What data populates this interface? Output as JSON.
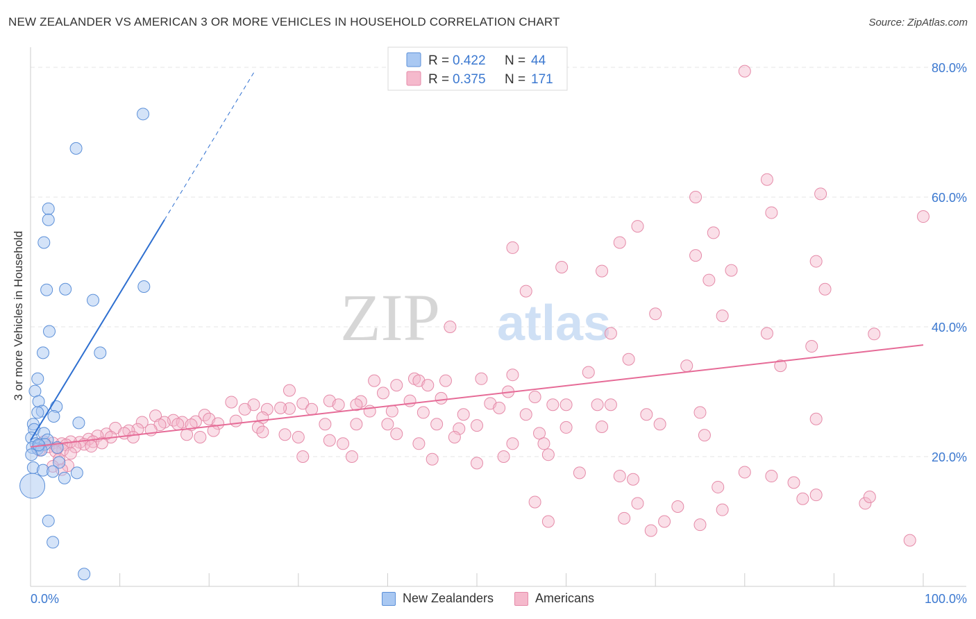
{
  "title": "NEW ZEALANDER VS AMERICAN 3 OR MORE VEHICLES IN HOUSEHOLD CORRELATION CHART",
  "source": "Source: ZipAtlas.com",
  "watermark": {
    "part1": "ZIP",
    "part2": "atlas"
  },
  "colors": {
    "blue_fill": "#a9c8f2",
    "blue_stroke": "#5b8fd8",
    "blue_line": "#2e6fd0",
    "pink_fill": "#f5b9cc",
    "pink_stroke": "#e58aa8",
    "pink_line": "#e66b97",
    "axis_text": "#3b78d0"
  },
  "legend_box": {
    "rows": [
      {
        "r_label": "R =",
        "r_value": "0.422",
        "n_label": "N =",
        "n_value": "44"
      },
      {
        "r_label": "R =",
        "r_value": "0.375",
        "n_label": "N =",
        "n_value": "171"
      }
    ]
  },
  "legend_bottom": [
    "New Zealanders",
    "Americans"
  ],
  "chart_data": {
    "type": "scatter",
    "title": "NEW ZEALANDER VS AMERICAN 3 OR MORE VEHICLES IN HOUSEHOLD CORRELATION CHART",
    "xlabel": "",
    "ylabel": "3 or more Vehicles in Household",
    "xlim": [
      0,
      100
    ],
    "ylim": [
      0,
      80
    ],
    "x_tick_labels": [
      "0.0%",
      "100.0%"
    ],
    "y_tick_labels": [
      "20.0%",
      "40.0%",
      "60.0%",
      "80.0%"
    ],
    "y_ticks": [
      20,
      40,
      60,
      80
    ],
    "grid": true,
    "legend_position": "top-center",
    "series": [
      {
        "name": "New Zealanders",
        "r": 0.422,
        "n": 44,
        "trend": {
          "x0": 0,
          "y0": 22.5,
          "x1": 15,
          "y1": 56.5,
          "x_dash_end": 25
        },
        "points": [
          [
            12.6,
            72.8
          ],
          [
            5.1,
            67.5
          ],
          [
            2.0,
            58.2
          ],
          [
            2.0,
            56.5
          ],
          [
            1.5,
            53.0
          ],
          [
            1.8,
            45.7
          ],
          [
            3.9,
            45.8
          ],
          [
            12.7,
            46.2
          ],
          [
            7.0,
            44.1
          ],
          [
            2.1,
            39.3
          ],
          [
            1.4,
            36.0
          ],
          [
            7.8,
            36.0
          ],
          [
            0.8,
            32.0
          ],
          [
            0.5,
            30.1
          ],
          [
            0.9,
            28.5
          ],
          [
            2.9,
            27.7
          ],
          [
            1.3,
            27.0
          ],
          [
            0.8,
            26.8
          ],
          [
            2.6,
            26.2
          ],
          [
            5.4,
            25.2
          ],
          [
            0.3,
            25.0
          ],
          [
            0.4,
            24.2
          ],
          [
            1.5,
            23.6
          ],
          [
            1.9,
            22.6
          ],
          [
            0.1,
            22.9
          ],
          [
            0.6,
            22.0
          ],
          [
            1.0,
            21.7
          ],
          [
            1.6,
            21.9
          ],
          [
            0.2,
            21.4
          ],
          [
            0.8,
            21.2
          ],
          [
            3.0,
            21.4
          ],
          [
            1.2,
            21.0
          ],
          [
            0.1,
            20.3
          ],
          [
            3.2,
            19.1
          ],
          [
            0.3,
            18.3
          ],
          [
            1.4,
            17.9
          ],
          [
            2.5,
            17.7
          ],
          [
            5.2,
            17.5
          ],
          [
            3.8,
            16.7
          ],
          [
            0.2,
            15.5
          ],
          [
            2.0,
            10.1
          ],
          [
            2.5,
            6.8
          ],
          [
            6.0,
            1.9
          ],
          [
            0.9,
            21.8
          ]
        ]
      },
      {
        "name": "Americans",
        "r": 0.375,
        "n": 171,
        "trend": {
          "x0": 0,
          "y0": 21.5,
          "x1": 100,
          "y1": 37.2
        },
        "points": [
          [
            80.0,
            79.4
          ],
          [
            82.5,
            62.7
          ],
          [
            74.5,
            60.0
          ],
          [
            83.0,
            57.6
          ],
          [
            88.5,
            60.5
          ],
          [
            100.0,
            57.0
          ],
          [
            68.0,
            55.5
          ],
          [
            76.5,
            54.5
          ],
          [
            66.0,
            53.0
          ],
          [
            54.0,
            52.2
          ],
          [
            74.5,
            51.0
          ],
          [
            88.0,
            50.1
          ],
          [
            59.5,
            49.2
          ],
          [
            64.0,
            48.6
          ],
          [
            78.5,
            48.7
          ],
          [
            76.0,
            47.2
          ],
          [
            89.0,
            45.8
          ],
          [
            55.5,
            45.5
          ],
          [
            70.0,
            42.0
          ],
          [
            77.5,
            41.7
          ],
          [
            47.0,
            40.0
          ],
          [
            65.0,
            39.0
          ],
          [
            82.5,
            39.0
          ],
          [
            94.5,
            38.9
          ],
          [
            87.5,
            37.0
          ],
          [
            84.0,
            34.0
          ],
          [
            67.0,
            35.0
          ],
          [
            73.5,
            34.0
          ],
          [
            62.5,
            33.0
          ],
          [
            54.0,
            32.6
          ],
          [
            50.5,
            32.0
          ],
          [
            43.0,
            32.0
          ],
          [
            43.5,
            31.7
          ],
          [
            46.5,
            31.7
          ],
          [
            38.5,
            31.7
          ],
          [
            44.5,
            31.0
          ],
          [
            41.0,
            31.0
          ],
          [
            29.0,
            30.2
          ],
          [
            53.5,
            30.0
          ],
          [
            39.5,
            29.8
          ],
          [
            56.5,
            29.2
          ],
          [
            46.0,
            29.0
          ],
          [
            33.5,
            28.6
          ],
          [
            37.0,
            28.5
          ],
          [
            42.5,
            28.6
          ],
          [
            30.5,
            28.2
          ],
          [
            22.5,
            28.4
          ],
          [
            34.5,
            28.0
          ],
          [
            36.5,
            28.0
          ],
          [
            51.5,
            28.2
          ],
          [
            58.5,
            28.0
          ],
          [
            60.0,
            28.0
          ],
          [
            63.5,
            28.0
          ],
          [
            65.0,
            28.0
          ],
          [
            52.5,
            27.5
          ],
          [
            29.0,
            27.4
          ],
          [
            25.0,
            28.0
          ],
          [
            28.0,
            27.5
          ],
          [
            24.0,
            27.3
          ],
          [
            26.5,
            27.3
          ],
          [
            31.5,
            27.3
          ],
          [
            38.0,
            27.0
          ],
          [
            40.5,
            27.0
          ],
          [
            44.0,
            26.8
          ],
          [
            48.5,
            26.5
          ],
          [
            55.5,
            26.5
          ],
          [
            69.0,
            26.5
          ],
          [
            75.0,
            26.8
          ],
          [
            88.0,
            25.8
          ],
          [
            19.5,
            26.4
          ],
          [
            26.0,
            26.0
          ],
          [
            14.0,
            26.3
          ],
          [
            16.0,
            25.6
          ],
          [
            20.0,
            25.8
          ],
          [
            23.0,
            25.5
          ],
          [
            17.0,
            25.3
          ],
          [
            18.5,
            25.4
          ],
          [
            21.0,
            25.1
          ],
          [
            15.0,
            25.3
          ],
          [
            12.5,
            25.3
          ],
          [
            14.5,
            24.9
          ],
          [
            16.5,
            25.0
          ],
          [
            18.0,
            24.9
          ],
          [
            33.0,
            25.0
          ],
          [
            36.5,
            25.0
          ],
          [
            40.0,
            25.0
          ],
          [
            45.5,
            25.0
          ],
          [
            50.0,
            24.8
          ],
          [
            64.0,
            24.6
          ],
          [
            70.5,
            25.0
          ],
          [
            60.0,
            24.5
          ],
          [
            48.0,
            24.3
          ],
          [
            25.5,
            24.5
          ],
          [
            20.5,
            24.0
          ],
          [
            12.0,
            24.2
          ],
          [
            11.0,
            24.0
          ],
          [
            9.5,
            24.4
          ],
          [
            13.5,
            24.1
          ],
          [
            10.5,
            23.6
          ],
          [
            8.5,
            23.5
          ],
          [
            11.5,
            23.0
          ],
          [
            7.5,
            23.2
          ],
          [
            9.0,
            23.0
          ],
          [
            17.5,
            23.4
          ],
          [
            19.0,
            23.0
          ],
          [
            28.5,
            23.4
          ],
          [
            30.0,
            23.0
          ],
          [
            41.0,
            23.5
          ],
          [
            47.5,
            23.0
          ],
          [
            57.0,
            23.6
          ],
          [
            75.5,
            23.3
          ],
          [
            6.5,
            22.7
          ],
          [
            7.0,
            22.3
          ],
          [
            5.5,
            22.2
          ],
          [
            4.5,
            22.3
          ],
          [
            3.5,
            22.0
          ],
          [
            6.0,
            21.9
          ],
          [
            8.0,
            22.1
          ],
          [
            2.5,
            22.1
          ],
          [
            1.5,
            22.3
          ],
          [
            5.0,
            21.5
          ],
          [
            4.0,
            21.8
          ],
          [
            6.8,
            21.6
          ],
          [
            3.0,
            21.3
          ],
          [
            2.0,
            21.5
          ],
          [
            33.5,
            22.5
          ],
          [
            35.0,
            22.0
          ],
          [
            43.5,
            22.0
          ],
          [
            54.0,
            22.0
          ],
          [
            57.5,
            22.0
          ],
          [
            3.6,
            21.0
          ],
          [
            2.8,
            20.8
          ],
          [
            1.0,
            21.0
          ],
          [
            4.5,
            20.5
          ],
          [
            3.2,
            19.6
          ],
          [
            30.5,
            20.0
          ],
          [
            36.0,
            20.0
          ],
          [
            45.0,
            19.6
          ],
          [
            53.0,
            20.0
          ],
          [
            58.0,
            20.3
          ],
          [
            2.5,
            18.5
          ],
          [
            4.2,
            18.6
          ],
          [
            3.5,
            18.0
          ],
          [
            66.0,
            17.0
          ],
          [
            80.0,
            17.6
          ],
          [
            67.5,
            16.5
          ],
          [
            83.0,
            17.0
          ],
          [
            85.5,
            16.0
          ],
          [
            61.5,
            17.5
          ],
          [
            77.0,
            15.3
          ],
          [
            56.5,
            13.0
          ],
          [
            88.0,
            14.1
          ],
          [
            68.0,
            12.8
          ],
          [
            72.5,
            12.3
          ],
          [
            77.5,
            11.8
          ],
          [
            86.5,
            13.5
          ],
          [
            58.0,
            10.0
          ],
          [
            66.5,
            10.5
          ],
          [
            71.0,
            10.0
          ],
          [
            75.0,
            9.5
          ],
          [
            93.5,
            12.8
          ],
          [
            94.0,
            13.8
          ],
          [
            69.5,
            8.6
          ],
          [
            98.5,
            7.1
          ],
          [
            50.0,
            19.0
          ],
          [
            26.0,
            23.8
          ]
        ]
      }
    ]
  }
}
